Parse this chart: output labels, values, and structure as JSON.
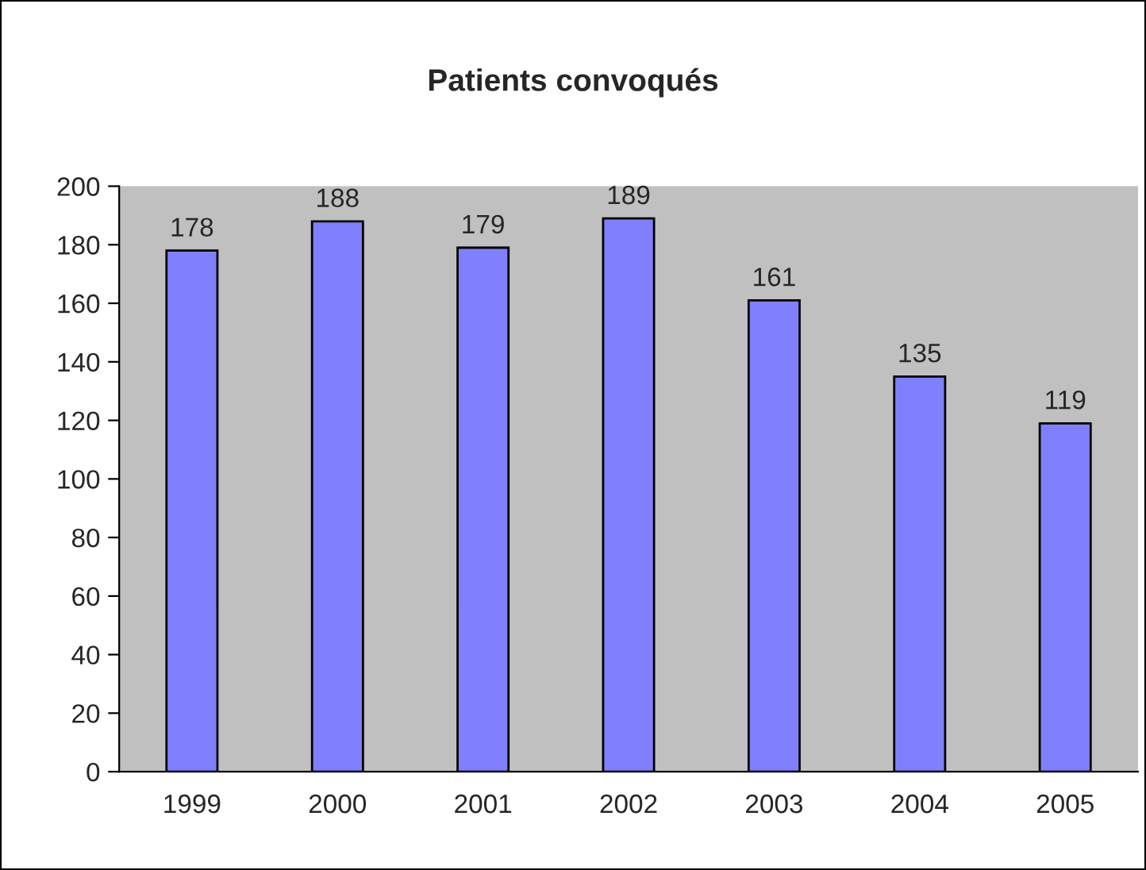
{
  "chart_data": {
    "type": "bar",
    "title": "Patients convoqués",
    "categories": [
      "1999",
      "2000",
      "2001",
      "2002",
      "2003",
      "2004",
      "2005"
    ],
    "values": [
      178,
      188,
      179,
      189,
      161,
      135,
      119
    ],
    "color": "#8080ff",
    "ylim": [
      0,
      200
    ],
    "yticks": [
      0,
      20,
      40,
      60,
      80,
      100,
      120,
      140,
      160,
      180,
      200
    ],
    "data_labels": true,
    "grid": false,
    "legend": false
  }
}
